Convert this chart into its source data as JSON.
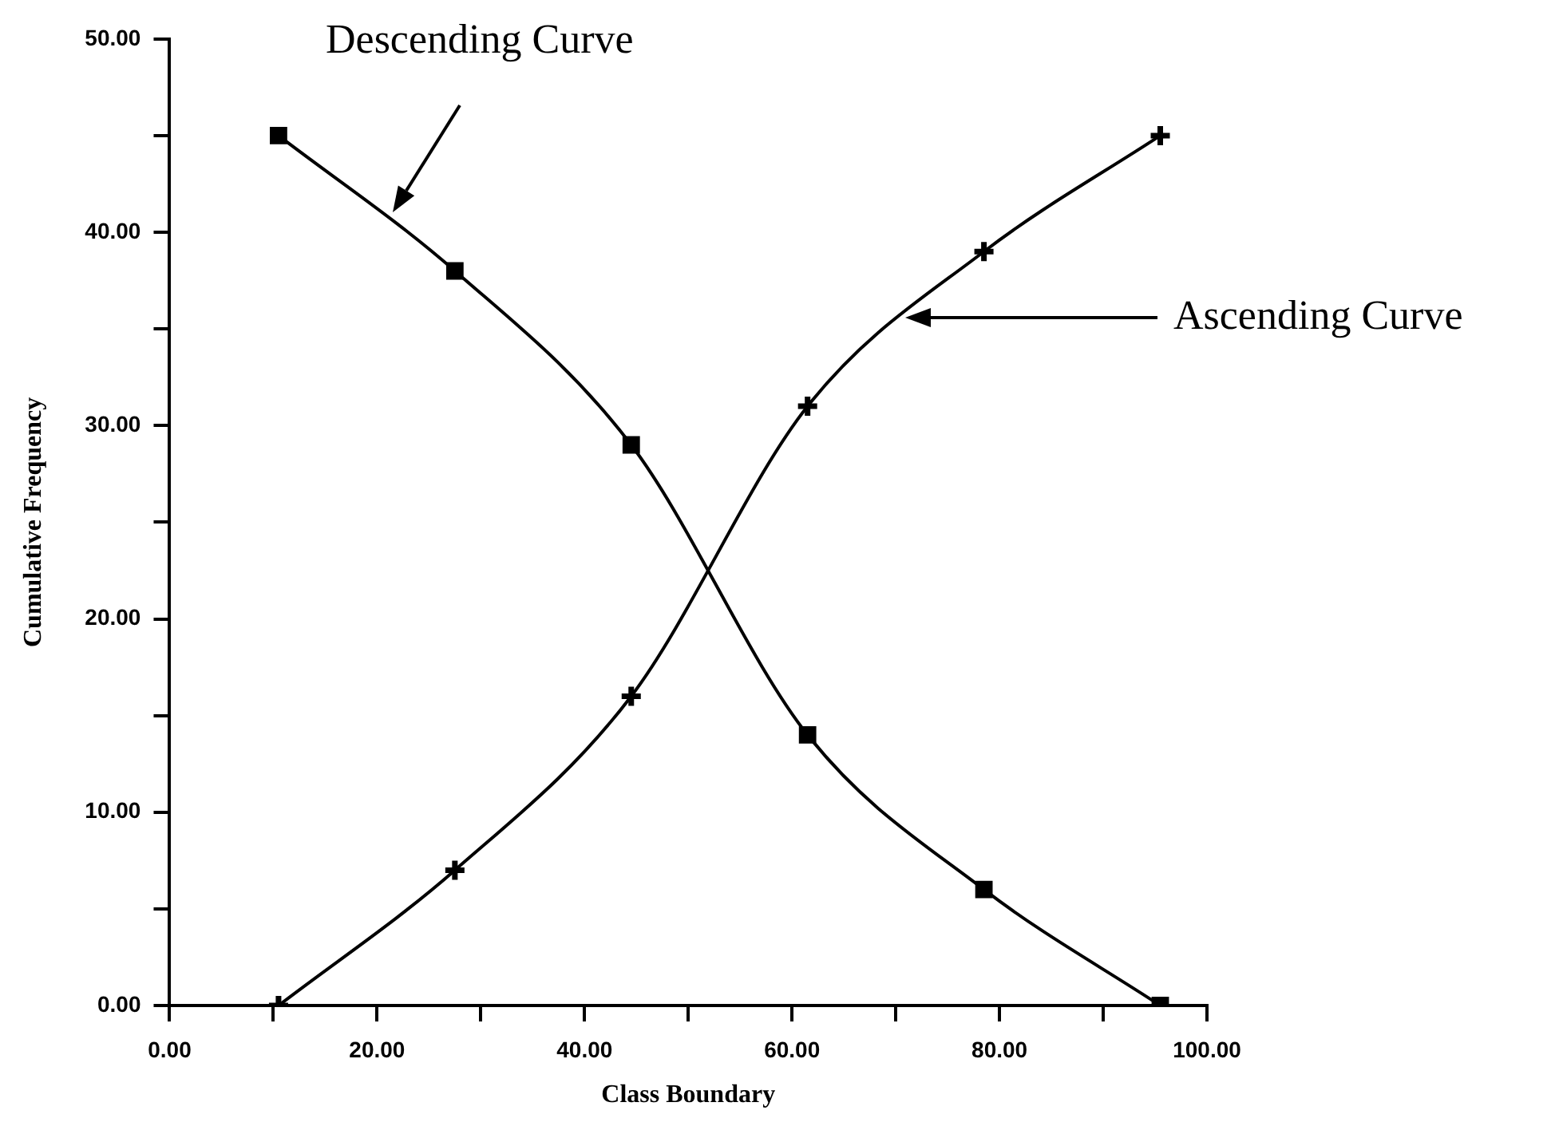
{
  "chart_data": {
    "type": "line",
    "xlabel": "Class Boundary",
    "ylabel": "Cumulative Frequency",
    "x": [
      10.5,
      27.5,
      44.5,
      61.5,
      78.5,
      95.5
    ],
    "series": [
      {
        "color": "#000000",
        "marker": "square",
        "values": [
          45,
          38,
          29,
          14,
          6,
          0
        ]
      },
      {
        "color": "#000000",
        "marker": "cross",
        "values": [
          0,
          7,
          16,
          31,
          39,
          45
        ]
      }
    ],
    "xlim": [
      0,
      100
    ],
    "xticks": [
      {
        "value": 0,
        "label": "0.00"
      },
      {
        "value": 10,
        "label": null
      },
      {
        "value": 20,
        "label": "20.00"
      },
      {
        "value": 30,
        "label": null
      },
      {
        "value": 40,
        "label": "40.00"
      },
      {
        "value": 50,
        "label": null
      },
      {
        "value": 60,
        "label": "60.00"
      },
      {
        "value": 70,
        "label": null
      },
      {
        "value": 80,
        "label": "80.00"
      },
      {
        "value": 90,
        "label": null
      },
      {
        "value": 100,
        "label": "100.00"
      }
    ],
    "ylim": [
      0,
      50
    ],
    "yticks": [
      {
        "value": 0,
        "label": "0.00"
      },
      {
        "value": 5,
        "label": null
      },
      {
        "value": 10,
        "label": "10.00"
      },
      {
        "value": 15,
        "label": null
      },
      {
        "value": 20,
        "label": "20.00"
      },
      {
        "value": 25,
        "label": null
      },
      {
        "value": 30,
        "label": "30.00"
      },
      {
        "value": 35,
        "label": null
      },
      {
        "value": 40,
        "label": "40.00"
      },
      {
        "value": 45,
        "label": null
      },
      {
        "value": 50,
        "label": "50.00"
      }
    ],
    "annotations": [
      "Descending Curve",
      "Ascending Curve"
    ],
    "grid": false,
    "legend": false,
    "line_style": "solid"
  }
}
